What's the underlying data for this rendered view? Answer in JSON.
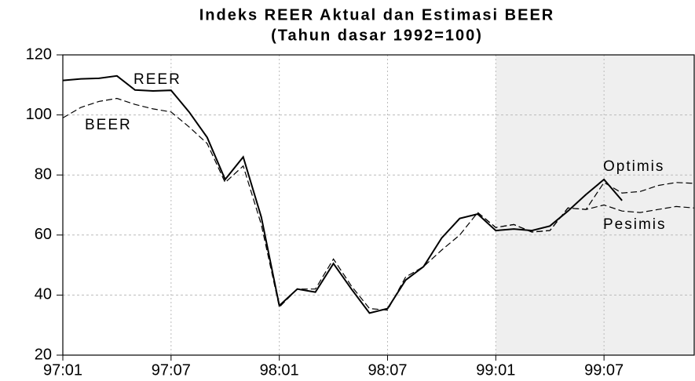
{
  "chart_data": {
    "type": "line",
    "title": "Indeks REER Aktual  dan Estimasi BEER",
    "subtitle": "(Tahun dasar 1992=100)",
    "categories": [
      "97:01",
      null,
      null,
      null,
      null,
      null,
      "97:07",
      null,
      null,
      null,
      null,
      null,
      "98:01",
      null,
      null,
      null,
      null,
      null,
      "98:07",
      null,
      null,
      null,
      null,
      null,
      "99:01",
      null,
      null,
      null,
      null,
      null,
      "99:07",
      null,
      null,
      null,
      null,
      null
    ],
    "series": [
      {
        "name": "REER",
        "color": "#000000",
        "dash": "none",
        "values": [
          111.5,
          112,
          112.2,
          113,
          108.3,
          108,
          108.2,
          101,
          92.5,
          78.5,
          86,
          66,
          36.5,
          42,
          41,
          50.5,
          42,
          34,
          35.5,
          45,
          49.5,
          59,
          65.5,
          67,
          61.5,
          62,
          61.5,
          63,
          68,
          73.5,
          78.5,
          71.5,
          null,
          null,
          null,
          null
        ]
      },
      {
        "name": "BEER",
        "color": "#000000",
        "dash": "8 4",
        "values": [
          99,
          102.5,
          104.5,
          105.5,
          103.5,
          102,
          101,
          96,
          90.5,
          77.5,
          83,
          63.5,
          36,
          42,
          42,
          52,
          43,
          35.5,
          35,
          46,
          49.5,
          55,
          60,
          67.5,
          null,
          null,
          null,
          null,
          null,
          null,
          null,
          null,
          null,
          null,
          null,
          null
        ]
      },
      {
        "name": "Optimis",
        "color": "#000000",
        "dash": "8 4",
        "values": [
          null,
          null,
          null,
          null,
          null,
          null,
          null,
          null,
          null,
          null,
          null,
          null,
          null,
          null,
          null,
          null,
          null,
          null,
          null,
          null,
          null,
          null,
          null,
          67.5,
          62.5,
          63.5,
          61,
          61.5,
          69,
          68.5,
          77.5,
          74,
          74.5,
          76.5,
          77.5,
          77.2
        ]
      },
      {
        "name": "Pesimis",
        "color": "#000000",
        "dash": "8 4",
        "values": [
          null,
          null,
          null,
          null,
          null,
          null,
          null,
          null,
          null,
          null,
          null,
          null,
          null,
          null,
          null,
          null,
          null,
          null,
          null,
          null,
          null,
          null,
          null,
          67.5,
          62.5,
          63.5,
          61,
          61.5,
          69,
          68.5,
          70,
          68,
          67.5,
          68.5,
          69.5,
          69
        ]
      }
    ],
    "ylim": [
      20,
      120
    ],
    "yticks": [
      20,
      40,
      60,
      80,
      100,
      120
    ],
    "grid": true,
    "legend": "inline",
    "shade": {
      "from": 24,
      "color": "#efefef"
    }
  }
}
